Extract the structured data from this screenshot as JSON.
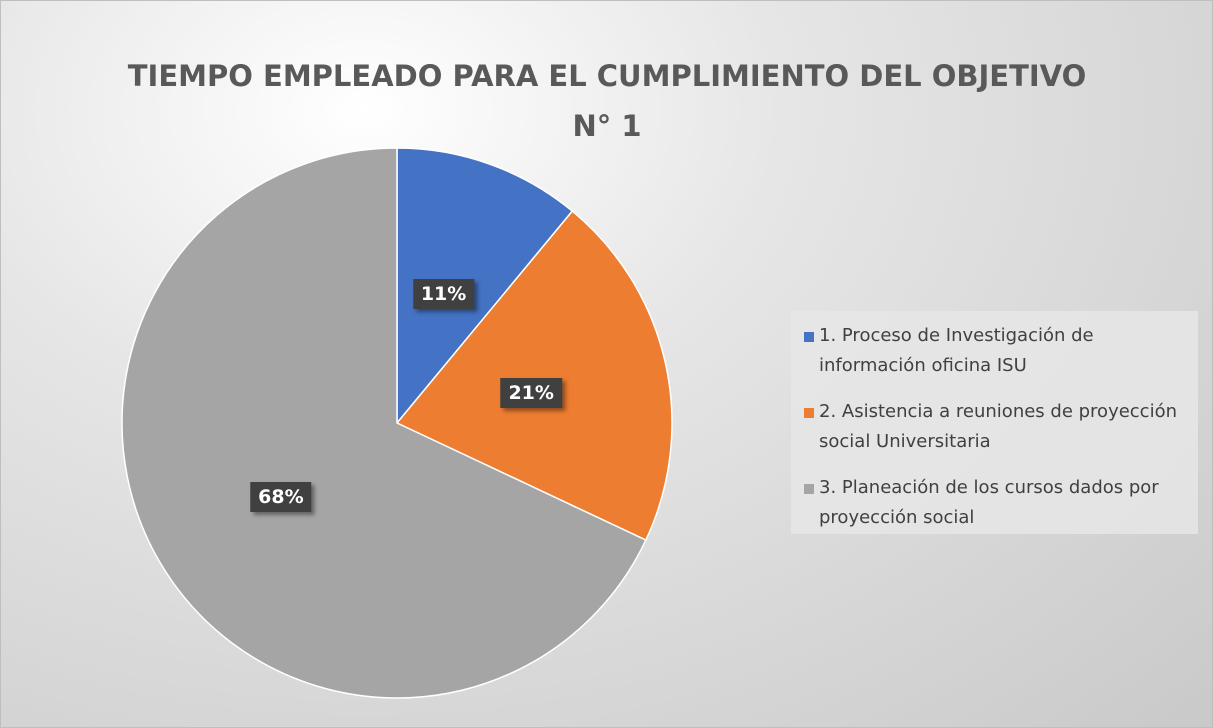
{
  "chart_data": {
    "type": "pie",
    "title": "TIEMPO EMPLEADO PARA EL CUMPLIMIENTO DEL OBJETIVO N° 1",
    "categories": [
      "1. Proceso de Investigación de información oficina ISU",
      "2. Asistencia a reuniones de proyección social Universitaria",
      "3. Planeación de los cursos dados por proyección social"
    ],
    "values": [
      11,
      21,
      68
    ],
    "value_labels": [
      "11%",
      "21%",
      "68%"
    ],
    "colors": [
      "#4472c4",
      "#ed7d31",
      "#a5a5a5"
    ],
    "legend": "right"
  }
}
